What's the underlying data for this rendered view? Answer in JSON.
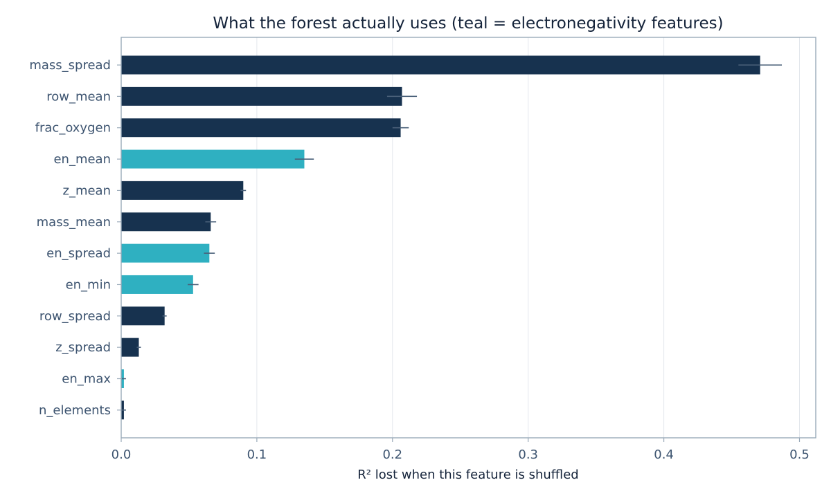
{
  "chart_data": {
    "type": "bar",
    "orientation": "horizontal",
    "title": "What the forest actually uses (teal = electronegativity features)",
    "xlabel": "R² lost when this feature is shuffled",
    "ylabel": "",
    "xlim": [
      0,
      0.512
    ],
    "xticks": [
      0.0,
      0.1,
      0.2,
      0.3,
      0.4,
      0.5
    ],
    "xtick_labels": [
      "0.0",
      "0.1",
      "0.2",
      "0.3",
      "0.4",
      "0.5"
    ],
    "grid": "vertical",
    "colors": {
      "default": "#17324f",
      "highlight": "#2fb0c1"
    },
    "categories": [
      "mass_spread",
      "row_mean",
      "frac_oxygen",
      "en_mean",
      "z_mean",
      "mass_mean",
      "en_spread",
      "en_min",
      "row_spread",
      "z_spread",
      "en_max",
      "n_elements"
    ],
    "values": [
      0.471,
      0.207,
      0.206,
      0.135,
      0.09,
      0.066,
      0.065,
      0.053,
      0.032,
      0.013,
      0.002,
      0.002
    ],
    "errors": [
      0.016,
      0.011,
      0.006,
      0.007,
      0.002,
      0.004,
      0.004,
      0.004,
      0.001,
      0.001,
      0.0,
      0.0
    ],
    "highlighted": [
      false,
      false,
      false,
      true,
      false,
      false,
      true,
      true,
      false,
      false,
      true,
      false
    ]
  }
}
